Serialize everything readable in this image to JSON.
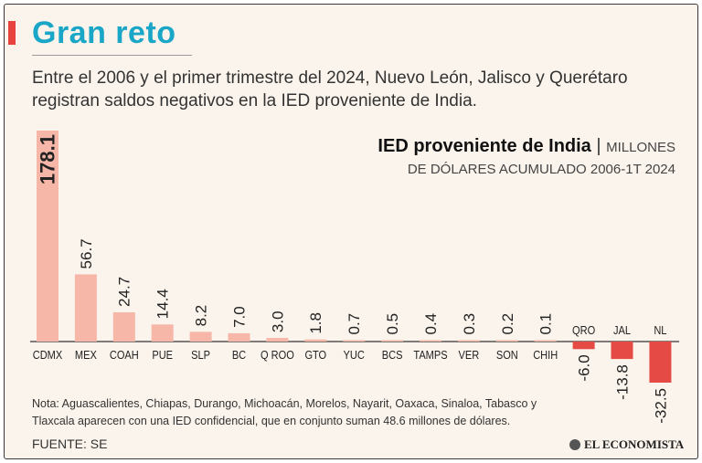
{
  "header": {
    "title": "Gran reto",
    "subtitle": "Entre el 2006 y el primer trimestre del 2024, Nuevo León, Jalisco y Querétaro registran saldos negativos en la IED proveniente de India."
  },
  "chart_head": {
    "title_bold": "IED proveniente de India",
    "separator": "|",
    "unit": "MILLONES",
    "line2": "DE DÓLARES  ACUMULADO 2006-1T 2024"
  },
  "chart_data": {
    "type": "bar",
    "title": "IED proveniente de India",
    "ylabel": "Millones de dólares",
    "categories": [
      "CDMX",
      "MEX",
      "COAH",
      "PUE",
      "SLP",
      "BC",
      "Q ROO",
      "GTO",
      "YUC",
      "BCS",
      "TAMPS",
      "VER",
      "SON",
      "CHIH",
      "QRO",
      "JAL",
      "NL"
    ],
    "values": [
      178.1,
      56.7,
      24.7,
      14.4,
      8.2,
      7.0,
      3.0,
      1.8,
      0.7,
      0.5,
      0.4,
      0.3,
      0.2,
      0.1,
      -6.0,
      -13.8,
      -32.5
    ],
    "value_labels": [
      "178.1",
      "56.7",
      "24.7",
      "14.4",
      "8.2",
      "7.0",
      "3.0",
      "1.8",
      "0.7",
      "0.5",
      "0.4",
      "0.3",
      "0.2",
      "0.1",
      "-6.0",
      "-13.8",
      "-32.5"
    ],
    "colors": {
      "positive": "#f6b7a9",
      "negative": "#e54a45",
      "baseline": "#333333"
    }
  },
  "footer": {
    "note": "Nota: Aguascalientes, Chiapas, Durango, Michoacán, Morelos, Nayarit, Oaxaca, Sinaloa, Tabasco y Tlaxcala aparecen con una IED confidencial, que en conjunto suman 48.6 millones de dólares.",
    "source": "FUENTE: SE",
    "logo_text": "EL ECONOMISTA"
  }
}
